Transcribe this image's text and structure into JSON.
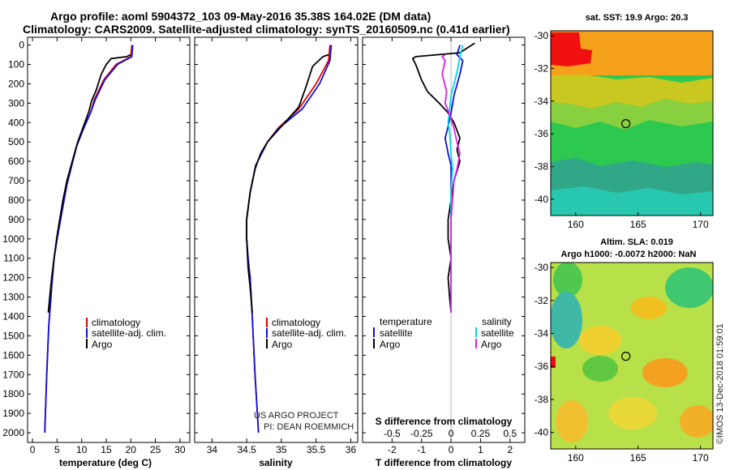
{
  "header": {
    "line1": "Argo profile: aoml 5904372_103 09-May-2016 35.38S 164.02E (DM data)",
    "line2": "Climatology: CARS2009. Satellite-adjusted climatology: synTS_20160509.nc (0.41d earlier)"
  },
  "colors": {
    "climatology": "#e00000",
    "satellite": "#1010e0",
    "argo": "#000000",
    "sat_salinity": "#00d8e8",
    "argo_salinity": "#e020e0"
  },
  "depth_axis": {
    "ticks": [
      0,
      100,
      200,
      300,
      400,
      500,
      600,
      700,
      800,
      900,
      1000,
      1100,
      1200,
      1300,
      1400,
      1500,
      1600,
      1700,
      1800,
      1900,
      2000
    ]
  },
  "chart_data": [
    {
      "type": "line",
      "name": "temperature",
      "xlabel": "temperature (deg C)",
      "xlim": [
        -1,
        32
      ],
      "ylim": [
        2050,
        -40
      ],
      "xticks": [
        0,
        5,
        10,
        15,
        20,
        25,
        30
      ],
      "legend": {
        "placement": "bottom-middle",
        "items": [
          "climatology",
          "satellite-adj. clim.",
          "Argo"
        ]
      },
      "series": [
        {
          "name": "climatology",
          "color": "#e00000",
          "points": [
            [
              20.2,
              0
            ],
            [
              20.0,
              60
            ],
            [
              17,
              100
            ],
            [
              14.5,
              180
            ],
            [
              12.6,
              280
            ],
            [
              11.8,
              350
            ],
            [
              10.4,
              430
            ],
            [
              9.0,
              520
            ],
            [
              8.0,
              620
            ],
            [
              7.0,
              720
            ],
            [
              6.0,
              860
            ],
            [
              5.0,
              1000
            ],
            [
              4.4,
              1100
            ],
            [
              3.9,
              1250
            ],
            [
              3.3,
              1450
            ],
            [
              2.9,
              1700
            ],
            [
              2.5,
              2000
            ]
          ]
        },
        {
          "name": "satellite-adj. clim.",
          "color": "#1010e0",
          "points": [
            [
              20.4,
              0
            ],
            [
              20.2,
              60
            ],
            [
              17.3,
              100
            ],
            [
              14.7,
              180
            ],
            [
              12.8,
              280
            ],
            [
              11.8,
              350
            ],
            [
              10.4,
              430
            ],
            [
              9.0,
              520
            ],
            [
              8.0,
              620
            ],
            [
              7.0,
              720
            ],
            [
              6.0,
              860
            ],
            [
              5.0,
              1000
            ],
            [
              4.4,
              1100
            ],
            [
              3.9,
              1250
            ],
            [
              3.3,
              1450
            ],
            [
              2.9,
              1700
            ],
            [
              2.5,
              2000
            ]
          ]
        },
        {
          "name": "Argo",
          "color": "#000000",
          "points": [
            [
              19.9,
              50
            ],
            [
              19.2,
              60
            ],
            [
              16,
              70
            ],
            [
              15,
              100
            ],
            [
              14,
              150
            ],
            [
              13,
              230
            ],
            [
              12,
              290
            ],
            [
              11.5,
              340
            ],
            [
              10.5,
              410
            ],
            [
              9.2,
              500
            ],
            [
              8.3,
              580
            ],
            [
              7.0,
              700
            ],
            [
              6.2,
              800
            ],
            [
              5.4,
              920
            ],
            [
              4.9,
              1000
            ],
            [
              4.4,
              1100
            ],
            [
              3.9,
              1200
            ],
            [
              3.5,
              1300
            ],
            [
              3.2,
              1380
            ]
          ]
        }
      ]
    },
    {
      "type": "line",
      "name": "salinity",
      "xlabel": "salinity",
      "xlim": [
        33.75,
        36.1
      ],
      "ylim": [
        2050,
        -40
      ],
      "xticks": [
        34,
        34.5,
        35,
        35.5,
        36
      ],
      "legend": {
        "placement": "bottom-middle",
        "items": [
          "climatology",
          "satellite-adj. clim.",
          "Argo"
        ]
      },
      "annotation": [
        "US ARGO PROJECT",
        "PI: DEAN ROEMMICH"
      ],
      "series": [
        {
          "name": "climatology",
          "color": "#e00000",
          "points": [
            [
              35.7,
              0
            ],
            [
              35.68,
              80
            ],
            [
              35.5,
              200
            ],
            [
              35.25,
              330
            ],
            [
              34.95,
              430
            ],
            [
              34.8,
              500
            ],
            [
              34.63,
              620
            ],
            [
              34.55,
              760
            ],
            [
              34.5,
              900
            ],
            [
              34.5,
              1000
            ],
            [
              34.52,
              1100
            ],
            [
              34.55,
              1200
            ],
            [
              34.58,
              1400
            ],
            [
              34.62,
              1700
            ],
            [
              34.67,
              2000
            ]
          ]
        },
        {
          "name": "satellite-adj. clim.",
          "color": "#1010e0",
          "points": [
            [
              35.72,
              0
            ],
            [
              35.7,
              80
            ],
            [
              35.55,
              200
            ],
            [
              35.3,
              330
            ],
            [
              34.96,
              430
            ],
            [
              34.8,
              500
            ],
            [
              34.63,
              620
            ],
            [
              34.55,
              760
            ],
            [
              34.5,
              900
            ],
            [
              34.5,
              1000
            ],
            [
              34.52,
              1100
            ],
            [
              34.55,
              1200
            ],
            [
              34.58,
              1400
            ],
            [
              34.62,
              1700
            ],
            [
              34.67,
              2000
            ]
          ]
        },
        {
          "name": "Argo",
          "color": "#000000",
          "points": [
            [
              35.68,
              50
            ],
            [
              35.6,
              60
            ],
            [
              35.45,
              110
            ],
            [
              35.35,
              220
            ],
            [
              35.25,
              320
            ],
            [
              35.1,
              380
            ],
            [
              34.95,
              440
            ],
            [
              34.8,
              500
            ],
            [
              34.7,
              560
            ],
            [
              34.62,
              640
            ],
            [
              34.55,
              760
            ],
            [
              34.5,
              900
            ],
            [
              34.5,
              1000
            ],
            [
              34.52,
              1150
            ],
            [
              34.55,
              1250
            ],
            [
              34.58,
              1380
            ]
          ]
        }
      ]
    },
    {
      "type": "line",
      "name": "differences",
      "xlabel": "T difference from climatology",
      "xlabel_top": "S difference from climatology",
      "xlim": [
        -3,
        2.5
      ],
      "ylim": [
        2050,
        -40
      ],
      "xticks": [
        -2,
        -1,
        0,
        1,
        2
      ],
      "xtick_labels": [
        "-2",
        "-1",
        "0",
        "1",
        "2"
      ],
      "xticks2": [
        -2,
        -1,
        0,
        1,
        2
      ],
      "xtick2_labels": [
        "-0.5",
        "-0.25",
        "0",
        "0.25",
        "0.5"
      ],
      "legend": {
        "placement": "bottom",
        "temperature_title": "temperature",
        "salinity_title": "salinity",
        "temperature_items": [
          "satellite",
          "Argo"
        ],
        "salinity_items": [
          "satellite",
          "Argo"
        ]
      },
      "series": [
        {
          "name": "T satellite",
          "color": "#1010e0",
          "points": [
            [
              0.3,
              0
            ],
            [
              0.2,
              50
            ],
            [
              0.4,
              80
            ],
            [
              0.3,
              150
            ],
            [
              0.1,
              260
            ],
            [
              0,
              350
            ],
            [
              -0.1,
              420
            ],
            [
              -0.2,
              480
            ],
            [
              -0.1,
              560
            ],
            [
              0,
              620
            ],
            [
              0,
              800
            ],
            [
              0,
              1000
            ],
            [
              0,
              1200
            ],
            [
              0,
              1380
            ]
          ]
        },
        {
          "name": "T Argo",
          "color": "#000000",
          "points": [
            [
              0.8,
              -10
            ],
            [
              0.3,
              40
            ],
            [
              -1.2,
              60
            ],
            [
              -1.3,
              70
            ],
            [
              -1.2,
              100
            ],
            [
              -1.0,
              180
            ],
            [
              -0.8,
              240
            ],
            [
              -0.4,
              300
            ],
            [
              -0.1,
              350
            ],
            [
              0.1,
              400
            ],
            [
              0.2,
              440
            ],
            [
              0.3,
              480
            ],
            [
              0.2,
              540
            ],
            [
              0.3,
              600
            ],
            [
              0.1,
              700
            ],
            [
              0.0,
              800
            ],
            [
              -0.1,
              900
            ],
            [
              -0.1,
              1000
            ],
            [
              0.0,
              1100
            ],
            [
              -0.1,
              1200
            ],
            [
              -0.05,
              1300
            ],
            [
              0,
              1380
            ]
          ]
        },
        {
          "name": "S satellite",
          "color": "#00d8e8",
          "points": [
            [
              0.4,
              0
            ],
            [
              0.3,
              60
            ],
            [
              0.2,
              140
            ],
            [
              0.0,
              260
            ],
            [
              -0.05,
              330
            ],
            [
              -0.1,
              400
            ],
            [
              -0.05,
              450
            ],
            [
              0,
              560
            ],
            [
              0.05,
              640
            ],
            [
              0,
              760
            ],
            [
              0,
              900
            ],
            [
              0,
              1050
            ],
            [
              0,
              1200
            ],
            [
              0,
              1380
            ]
          ]
        },
        {
          "name": "S Argo",
          "color": "#e020e0",
          "points": [
            [
              -0.2,
              50
            ],
            [
              -0.3,
              60
            ],
            [
              -0.2,
              80
            ],
            [
              -0.3,
              150
            ],
            [
              -0.15,
              240
            ],
            [
              -0.2,
              300
            ],
            [
              -0.1,
              340
            ],
            [
              0,
              380
            ],
            [
              0.1,
              430
            ],
            [
              0.2,
              500
            ],
            [
              0.3,
              560
            ],
            [
              0.2,
              640
            ],
            [
              0.1,
              700
            ],
            [
              0.05,
              800
            ],
            [
              0,
              900
            ],
            [
              0,
              1100
            ],
            [
              0,
              1250
            ],
            [
              0,
              1380
            ]
          ]
        }
      ]
    }
  ],
  "maps": {
    "sst": {
      "title": "sat. SST: 19.9 Argo: 20.3",
      "xticks": [
        160,
        165,
        170
      ],
      "yticks": [
        -30,
        -32,
        -34,
        -36,
        -38,
        -40
      ],
      "lon_range": [
        158,
        171
      ],
      "lat_range": [
        -41,
        -29.7
      ],
      "marker": {
        "lon": 164.02,
        "lat": -35.38
      }
    },
    "sla": {
      "title1": "Altim. SLA: 0.019",
      "title2": "Argo h1000: -0.0072 h2000: NaN",
      "xticks": [
        160,
        165,
        170
      ],
      "yticks": [
        -30,
        -32,
        -34,
        -36,
        -38,
        -40
      ],
      "lon_range": [
        158,
        171
      ],
      "lat_range": [
        -41,
        -29.7
      ],
      "marker": {
        "lon": 164.02,
        "lat": -35.38
      }
    }
  },
  "credit": "©IMOS 13-Dec-2018 01:59:01"
}
